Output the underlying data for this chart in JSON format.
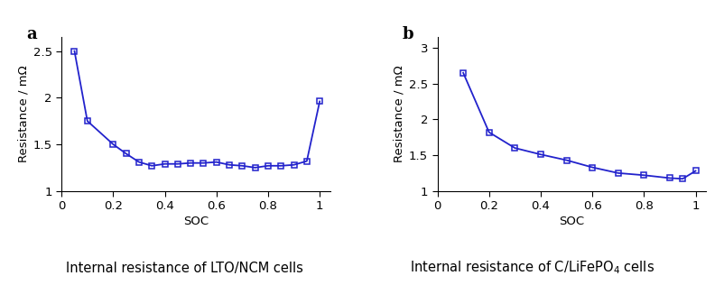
{
  "plot_a": {
    "x": [
      0.05,
      0.1,
      0.2,
      0.25,
      0.3,
      0.35,
      0.4,
      0.45,
      0.5,
      0.55,
      0.6,
      0.65,
      0.7,
      0.75,
      0.8,
      0.85,
      0.9,
      0.95,
      1.0
    ],
    "y": [
      2.5,
      1.75,
      1.5,
      1.4,
      1.31,
      1.27,
      1.29,
      1.29,
      1.3,
      1.3,
      1.31,
      1.28,
      1.27,
      1.25,
      1.27,
      1.27,
      1.28,
      1.32,
      1.96
    ],
    "title": "Internal resistance of LTO/NCM cells",
    "label": "a",
    "ylabel": "Resistance / mΩ",
    "xlabel": "SOC",
    "xlim": [
      0,
      1.04
    ],
    "ylim": [
      1.0,
      2.65
    ],
    "yticks": [
      1,
      1.5,
      2,
      2.5
    ],
    "ytick_labels": [
      "1",
      "1.5",
      "2",
      "2.5"
    ],
    "xticks": [
      0,
      0.2,
      0.4,
      0.6,
      0.8,
      1.0
    ],
    "xtick_labels": [
      "0",
      "0.2",
      "0.4",
      "0.6",
      "0.8",
      "1"
    ]
  },
  "plot_b": {
    "x": [
      0.1,
      0.2,
      0.3,
      0.4,
      0.5,
      0.6,
      0.7,
      0.8,
      0.9,
      0.95,
      1.0
    ],
    "y": [
      2.65,
      1.82,
      1.6,
      1.51,
      1.43,
      1.33,
      1.25,
      1.22,
      1.18,
      1.17,
      1.28
    ],
    "title_part1": "Internal resistance of C/LiFePO",
    "title_sub": "4",
    "title_part2": " cells",
    "label": "b",
    "ylabel": "Resistance / mΩ",
    "xlabel": "SOC",
    "xlim": [
      0,
      1.04
    ],
    "ylim": [
      1.0,
      3.15
    ],
    "yticks": [
      1,
      1.5,
      2,
      2.5,
      3
    ],
    "ytick_labels": [
      "1",
      "1.5",
      "2",
      "2.5",
      "3"
    ],
    "xticks": [
      0,
      0.2,
      0.4,
      0.6,
      0.8,
      1.0
    ],
    "xtick_labels": [
      "0",
      "0.2",
      "0.4",
      "0.6",
      "0.8",
      "1"
    ]
  },
  "line_color": "#2222cc",
  "marker": "s",
  "markersize": 4.5,
  "linewidth": 1.3,
  "bg_color": "#ffffff",
  "label_fontsize": 13,
  "tick_fontsize": 9.5,
  "caption_fontsize": 10.5,
  "axis_label_fontsize": 9.5
}
